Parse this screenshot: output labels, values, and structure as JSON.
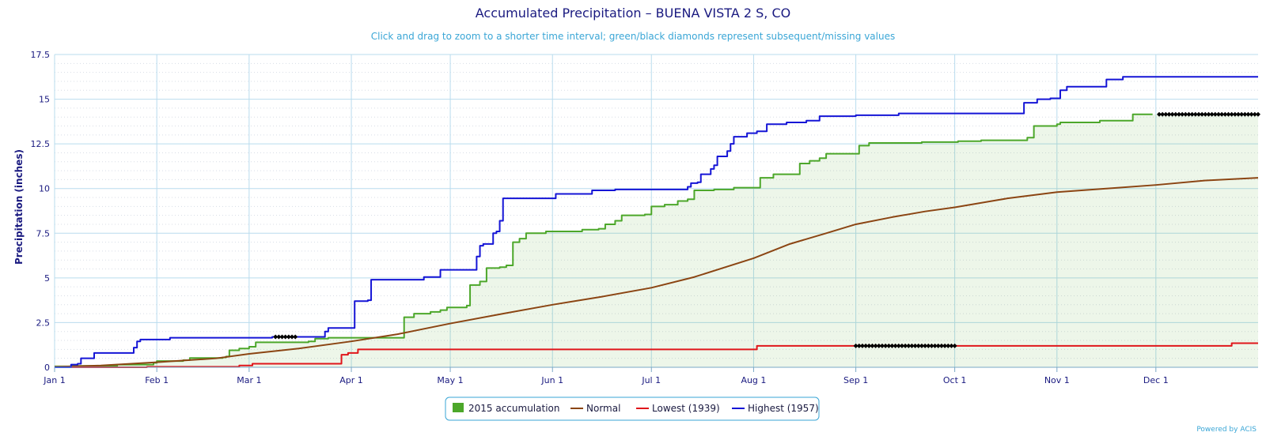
{
  "chart_data": {
    "type": "line",
    "title": "Accumulated Precipitation – BUENA VISTA 2 S, CO",
    "subtitle": "Click and drag to zoom to a shorter time interval; green/black diamonds represent subsequent/missing values",
    "ylabel": "Precipitation (inches)",
    "xlabel": "",
    "ylim": [
      0,
      17.5
    ],
    "yticks": [
      0,
      2.5,
      5,
      7.5,
      10,
      12.5,
      15,
      17.5
    ],
    "ytick_labels": [
      "0",
      "2.5",
      "5",
      "7.5",
      "10",
      "12.5",
      "15",
      "17.5"
    ],
    "x_unit": "day of year",
    "xlim": [
      1,
      366
    ],
    "xticks": [
      1,
      32,
      60,
      91,
      121,
      152,
      182,
      213,
      244,
      274,
      305,
      335
    ],
    "xtick_labels": [
      "Jan 1",
      "Feb 1",
      "Mar 1",
      "Apr 1",
      "May 1",
      "Jun 1",
      "Jul 1",
      "Aug 1",
      "Sep 1",
      "Oct 1",
      "Nov 1",
      "Dec 1"
    ],
    "grid": true,
    "legend_position": "bottom-center",
    "series": [
      {
        "name": "2015 accumulation",
        "color": "#4ca72a",
        "style": "area-step",
        "points": [
          [
            1,
            0.05
          ],
          [
            6,
            0.08
          ],
          [
            20,
            0.15
          ],
          [
            31,
            0.25
          ],
          [
            32,
            0.35
          ],
          [
            40,
            0.4
          ],
          [
            42,
            0.52
          ],
          [
            52,
            0.55
          ],
          [
            53,
            0.6
          ],
          [
            54,
            0.95
          ],
          [
            57,
            1.05
          ],
          [
            60,
            1.15
          ],
          [
            62,
            1.4
          ],
          [
            78,
            1.45
          ],
          [
            80,
            1.6
          ],
          [
            84,
            1.65
          ],
          [
            106,
            1.65
          ],
          [
            107,
            2.8
          ],
          [
            110,
            3.0
          ],
          [
            115,
            3.1
          ],
          [
            118,
            3.2
          ],
          [
            120,
            3.35
          ],
          [
            126,
            3.45
          ],
          [
            127,
            4.6
          ],
          [
            130,
            4.8
          ],
          [
            132,
            5.55
          ],
          [
            136,
            5.6
          ],
          [
            138,
            5.7
          ],
          [
            140,
            7.0
          ],
          [
            142,
            7.2
          ],
          [
            144,
            7.5
          ],
          [
            150,
            7.6
          ],
          [
            160,
            7.6
          ],
          [
            161,
            7.7
          ],
          [
            166,
            7.75
          ],
          [
            168,
            8.0
          ],
          [
            171,
            8.2
          ],
          [
            173,
            8.5
          ],
          [
            180,
            8.55
          ],
          [
            182,
            9.0
          ],
          [
            186,
            9.1
          ],
          [
            190,
            9.3
          ],
          [
            193,
            9.4
          ],
          [
            195,
            9.9
          ],
          [
            200,
            9.9
          ],
          [
            201,
            9.95
          ],
          [
            206,
            9.95
          ],
          [
            207,
            10.05
          ],
          [
            214,
            10.05
          ],
          [
            215,
            10.6
          ],
          [
            218,
            10.6
          ],
          [
            219,
            10.8
          ],
          [
            226,
            10.8
          ],
          [
            227,
            11.4
          ],
          [
            230,
            11.55
          ],
          [
            233,
            11.7
          ],
          [
            235,
            11.95
          ],
          [
            244,
            11.95
          ],
          [
            245,
            12.4
          ],
          [
            248,
            12.55
          ],
          [
            263,
            12.55
          ],
          [
            264,
            12.6
          ],
          [
            274,
            12.6
          ],
          [
            275,
            12.65
          ],
          [
            282,
            12.7
          ],
          [
            294,
            12.7
          ],
          [
            296,
            12.85
          ],
          [
            298,
            13.5
          ],
          [
            305,
            13.6
          ],
          [
            306,
            13.7
          ],
          [
            317,
            13.7
          ],
          [
            318,
            13.8
          ],
          [
            327,
            13.8
          ],
          [
            328,
            14.15
          ],
          [
            334,
            14.15
          ]
        ]
      },
      {
        "name": "Normal",
        "color": "#8b4513",
        "style": "line",
        "points": [
          [
            1,
            0.02
          ],
          [
            15,
            0.1
          ],
          [
            32,
            0.28
          ],
          [
            50,
            0.5
          ],
          [
            60,
            0.75
          ],
          [
            75,
            1.05
          ],
          [
            91,
            1.45
          ],
          [
            105,
            1.85
          ],
          [
            121,
            2.45
          ],
          [
            137,
            3.0
          ],
          [
            152,
            3.5
          ],
          [
            167,
            3.95
          ],
          [
            182,
            4.45
          ],
          [
            195,
            5.05
          ],
          [
            213,
            6.1
          ],
          [
            224,
            6.9
          ],
          [
            235,
            7.5
          ],
          [
            244,
            8.0
          ],
          [
            255,
            8.4
          ],
          [
            265,
            8.72
          ],
          [
            274,
            8.95
          ],
          [
            290,
            9.45
          ],
          [
            305,
            9.8
          ],
          [
            320,
            10.0
          ],
          [
            335,
            10.2
          ],
          [
            350,
            10.45
          ],
          [
            366,
            10.6
          ]
        ]
      },
      {
        "name": "Lowest (1939)",
        "color": "#e0161b",
        "style": "step",
        "points": [
          [
            1,
            0
          ],
          [
            28,
            0
          ],
          [
            29,
            0.03
          ],
          [
            56,
            0.03
          ],
          [
            57,
            0.1
          ],
          [
            60,
            0.1
          ],
          [
            61,
            0.2
          ],
          [
            85,
            0.2
          ],
          [
            88,
            0.7
          ],
          [
            90,
            0.8
          ],
          [
            93,
            1.0
          ],
          [
            213,
            1.0
          ],
          [
            214,
            1.2
          ],
          [
            356,
            1.2
          ],
          [
            358,
            1.35
          ],
          [
            366,
            1.35
          ]
        ]
      },
      {
        "name": "Highest (1957)",
        "color": "#1515d6",
        "style": "step",
        "points": [
          [
            1,
            0
          ],
          [
            5,
            0
          ],
          [
            6,
            0.15
          ],
          [
            8,
            0.2
          ],
          [
            9,
            0.5
          ],
          [
            12,
            0.5
          ],
          [
            13,
            0.8
          ],
          [
            24,
            0.8
          ],
          [
            25,
            1.1
          ],
          [
            26,
            1.45
          ],
          [
            27,
            1.55
          ],
          [
            35,
            1.55
          ],
          [
            36,
            1.65
          ],
          [
            66,
            1.65
          ],
          [
            67,
            1.7
          ],
          [
            82,
            1.7
          ],
          [
            83,
            2.0
          ],
          [
            84,
            2.2
          ],
          [
            91,
            2.2
          ],
          [
            92,
            3.7
          ],
          [
            96,
            3.75
          ],
          [
            97,
            4.9
          ],
          [
            112,
            4.9
          ],
          [
            113,
            5.05
          ],
          [
            117,
            5.05
          ],
          [
            118,
            5.45
          ],
          [
            128,
            5.45
          ],
          [
            129,
            6.2
          ],
          [
            130,
            6.8
          ],
          [
            131,
            6.9
          ],
          [
            133,
            6.9
          ],
          [
            134,
            7.5
          ],
          [
            135,
            7.6
          ],
          [
            136,
            8.2
          ],
          [
            137,
            9.45
          ],
          [
            152,
            9.45
          ],
          [
            153,
            9.7
          ],
          [
            162,
            9.7
          ],
          [
            164,
            9.9
          ],
          [
            170,
            9.9
          ],
          [
            171,
            9.95
          ],
          [
            190,
            9.95
          ],
          [
            193,
            10.1
          ],
          [
            194,
            10.3
          ],
          [
            196,
            10.35
          ],
          [
            197,
            10.8
          ],
          [
            200,
            11.1
          ],
          [
            201,
            11.3
          ],
          [
            202,
            11.8
          ],
          [
            205,
            12.1
          ],
          [
            206,
            12.5
          ],
          [
            207,
            12.9
          ],
          [
            210,
            12.9
          ],
          [
            211,
            13.1
          ],
          [
            214,
            13.2
          ],
          [
            216,
            13.2
          ],
          [
            217,
            13.6
          ],
          [
            222,
            13.6
          ],
          [
            223,
            13.7
          ],
          [
            228,
            13.7
          ],
          [
            229,
            13.8
          ],
          [
            232,
            13.8
          ],
          [
            233,
            14.05
          ],
          [
            243,
            14.05
          ],
          [
            244,
            14.1
          ],
          [
            256,
            14.1
          ],
          [
            257,
            14.2
          ],
          [
            294,
            14.2
          ],
          [
            295,
            14.8
          ],
          [
            298,
            14.8
          ],
          [
            299,
            15.0
          ],
          [
            303,
            15.05
          ],
          [
            305,
            15.05
          ],
          [
            306,
            15.5
          ],
          [
            308,
            15.7
          ],
          [
            319,
            15.7
          ],
          [
            320,
            16.1
          ],
          [
            324,
            16.1
          ],
          [
            325,
            16.25
          ],
          [
            366,
            16.25
          ]
        ]
      }
    ],
    "missing_markers": [
      {
        "from": 68,
        "to": 74,
        "value": 1.7
      },
      {
        "from": 244,
        "to": 274,
        "value": 1.2
      },
      {
        "from": 336,
        "to": 366,
        "value": 14.15
      }
    ],
    "credit": "Powered by ACIS"
  }
}
